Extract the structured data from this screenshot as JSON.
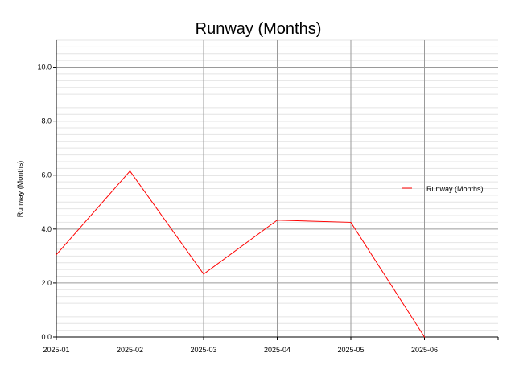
{
  "chart_data": {
    "type": "line",
    "title": "Runway (Months)",
    "xlabel": "",
    "ylabel": "Runway (Months)",
    "x": [
      "2025-01",
      "2025-02",
      "2025-03",
      "2025-04",
      "2025-05",
      "2025-06"
    ],
    "ylim": [
      0,
      11
    ],
    "yticks": [
      "0.0",
      "2.0",
      "4.0",
      "6.0",
      "8.0",
      "10.0"
    ],
    "grid": true,
    "legend_position": "right",
    "series": [
      {
        "name": "Runway (Months)",
        "color": "#ff0000",
        "values": [
          3.05,
          6.15,
          2.33,
          4.33,
          4.25,
          0.0
        ]
      }
    ]
  }
}
